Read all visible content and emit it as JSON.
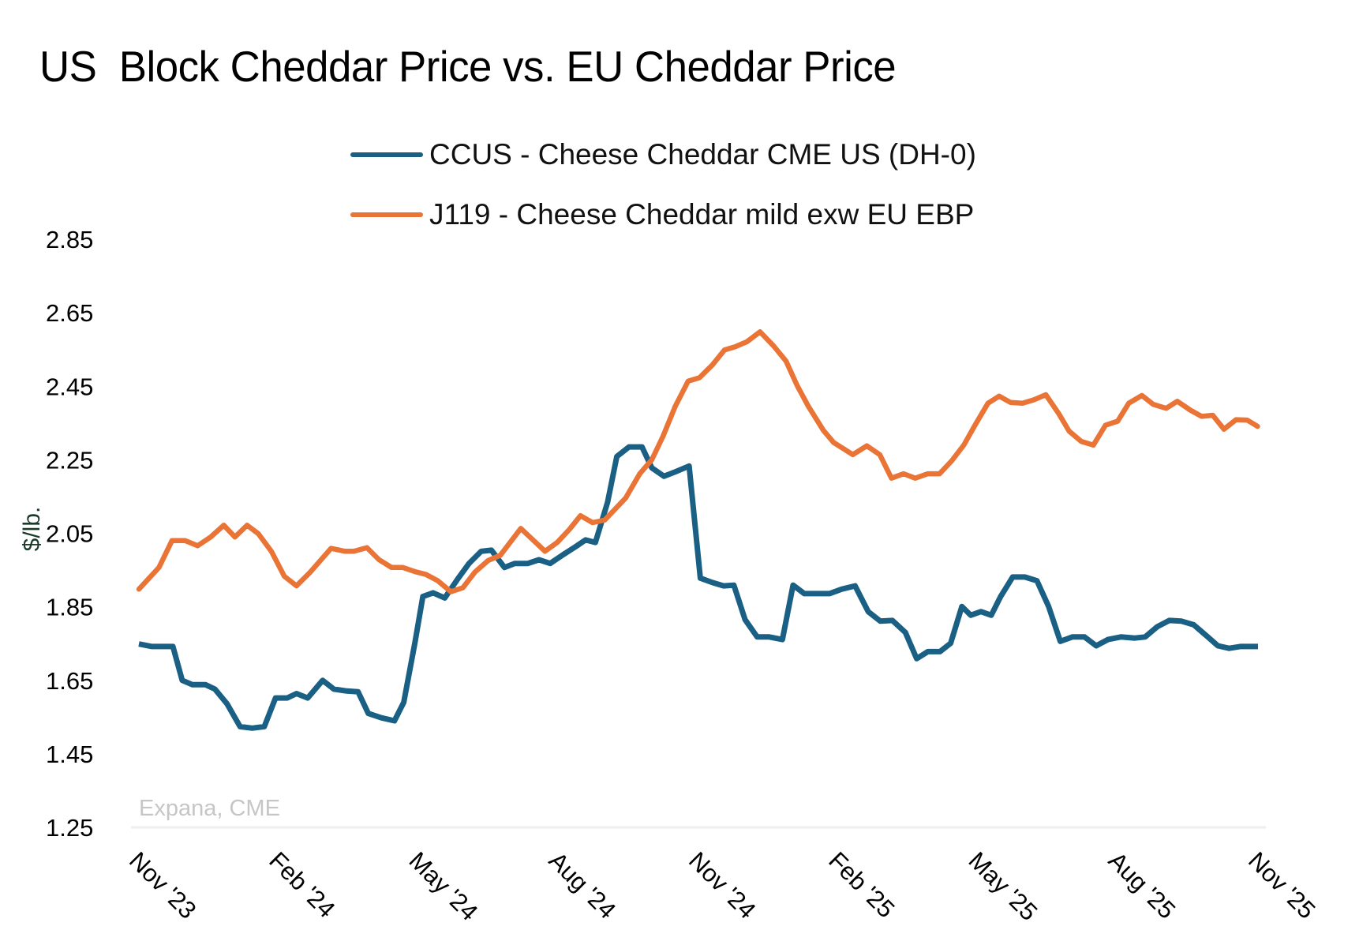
{
  "chart_data": {
    "type": "line",
    "title": "US  Block Cheddar Price vs. EU Cheddar Price",
    "ylabel": "$/lb.",
    "xlabel": "",
    "ylim": [
      1.25,
      2.85
    ],
    "yticks": [
      1.25,
      1.45,
      1.65,
      1.85,
      2.05,
      2.25,
      2.45,
      2.65,
      2.85
    ],
    "ytick_labels": [
      "1.25",
      "1.45",
      "1.65",
      "1.85",
      "2.05",
      "2.25",
      "2.45",
      "2.65",
      "2.85"
    ],
    "x_unit": "months since Nov '23",
    "xlim": [
      0,
      24
    ],
    "xticks": [
      0,
      3,
      6,
      9,
      12,
      15,
      18,
      21,
      24
    ],
    "xtick_labels": [
      "Nov '23",
      "Feb '24",
      "May '24",
      "Aug '24",
      "Nov '24",
      "Feb '25",
      "May '25",
      "Aug '25",
      "Nov '25"
    ],
    "grid": false,
    "legend_position": "top-center",
    "source": "Expana, CME",
    "series": [
      {
        "name": "CCUS - Cheese Cheddar CME US (DH-0)",
        "color": "#1a5f84",
        "points": [
          [
            0.0,
            1.749
          ],
          [
            0.28,
            1.742
          ],
          [
            0.56,
            1.742
          ],
          [
            0.73,
            1.742
          ],
          [
            0.93,
            1.65
          ],
          [
            1.15,
            1.638
          ],
          [
            1.43,
            1.638
          ],
          [
            1.63,
            1.626
          ],
          [
            1.89,
            1.586
          ],
          [
            2.17,
            1.524
          ],
          [
            2.43,
            1.52
          ],
          [
            2.69,
            1.524
          ],
          [
            2.93,
            1.602
          ],
          [
            3.18,
            1.602
          ],
          [
            3.38,
            1.614
          ],
          [
            3.62,
            1.602
          ],
          [
            3.94,
            1.65
          ],
          [
            4.18,
            1.626
          ],
          [
            4.46,
            1.621
          ],
          [
            4.7,
            1.619
          ],
          [
            4.92,
            1.56
          ],
          [
            5.2,
            1.548
          ],
          [
            5.48,
            1.54
          ],
          [
            5.68,
            1.59
          ],
          [
            5.92,
            1.753
          ],
          [
            6.09,
            1.878
          ],
          [
            6.31,
            1.888
          ],
          [
            6.56,
            1.874
          ],
          [
            6.84,
            1.926
          ],
          [
            7.08,
            1.968
          ],
          [
            7.34,
            2.001
          ],
          [
            7.56,
            2.004
          ],
          [
            7.84,
            1.957
          ],
          [
            8.06,
            1.968
          ],
          [
            8.34,
            1.968
          ],
          [
            8.58,
            1.978
          ],
          [
            8.82,
            1.968
          ],
          [
            9.1,
            1.992
          ],
          [
            9.36,
            2.013
          ],
          [
            9.58,
            2.032
          ],
          [
            9.79,
            2.025
          ],
          [
            10.05,
            2.134
          ],
          [
            10.25,
            2.259
          ],
          [
            10.51,
            2.285
          ],
          [
            10.79,
            2.285
          ],
          [
            10.999,
            2.228
          ],
          [
            11.26,
            2.205
          ],
          [
            11.5,
            2.217
          ],
          [
            11.8,
            2.233
          ],
          [
            12.04,
            1.928
          ],
          [
            12.3,
            1.916
          ],
          [
            12.54,
            1.907
          ],
          [
            12.76,
            1.909
          ],
          [
            13.0,
            1.815
          ],
          [
            13.26,
            1.768
          ],
          [
            13.52,
            1.768
          ],
          [
            13.8,
            1.761
          ],
          [
            14.03,
            1.909
          ],
          [
            14.27,
            1.886
          ],
          [
            14.55,
            1.886
          ],
          [
            14.81,
            1.886
          ],
          [
            15.07,
            1.898
          ],
          [
            15.36,
            1.907
          ],
          [
            15.64,
            1.837
          ],
          [
            15.9,
            1.811
          ],
          [
            16.16,
            1.813
          ],
          [
            16.44,
            1.78
          ],
          [
            16.68,
            1.709
          ],
          [
            16.92,
            1.728
          ],
          [
            17.18,
            1.728
          ],
          [
            17.41,
            1.751
          ],
          [
            17.65,
            1.851
          ],
          [
            17.84,
            1.827
          ],
          [
            18.06,
            1.837
          ],
          [
            18.28,
            1.827
          ],
          [
            18.48,
            1.878
          ],
          [
            18.74,
            1.931
          ],
          [
            19.0,
            1.931
          ],
          [
            19.26,
            1.921
          ],
          [
            19.51,
            1.851
          ],
          [
            19.76,
            1.756
          ],
          [
            20.02,
            1.768
          ],
          [
            20.28,
            1.768
          ],
          [
            20.53,
            1.744
          ],
          [
            20.78,
            1.761
          ],
          [
            21.06,
            1.768
          ],
          [
            21.36,
            1.765
          ],
          [
            21.58,
            1.768
          ],
          [
            21.84,
            1.796
          ],
          [
            22.1,
            1.813
          ],
          [
            22.36,
            1.811
          ],
          [
            22.62,
            1.801
          ],
          [
            22.88,
            1.773
          ],
          [
            23.14,
            1.744
          ],
          [
            23.38,
            1.737
          ],
          [
            23.62,
            1.742
          ],
          [
            23.86,
            1.742
          ],
          [
            24.0,
            1.742
          ]
        ]
      },
      {
        "name": "J119 - Cheese Cheddar mild exw EU EBP",
        "color": "#e97435",
        "points": [
          [
            0.0,
            1.898
          ],
          [
            0.43,
            1.957
          ],
          [
            0.71,
            2.03
          ],
          [
            0.99,
            2.03
          ],
          [
            1.26,
            2.016
          ],
          [
            1.54,
            2.04
          ],
          [
            1.82,
            2.072
          ],
          [
            2.06,
            2.04
          ],
          [
            2.32,
            2.072
          ],
          [
            2.56,
            2.049
          ],
          [
            2.84,
            2.001
          ],
          [
            3.12,
            1.933
          ],
          [
            3.38,
            1.907
          ],
          [
            3.68,
            1.945
          ],
          [
            4.12,
            2.009
          ],
          [
            4.42,
            2.001
          ],
          [
            4.61,
            2.001
          ],
          [
            4.89,
            2.011
          ],
          [
            5.15,
            1.978
          ],
          [
            5.42,
            1.957
          ],
          [
            5.66,
            1.957
          ],
          [
            5.94,
            1.945
          ],
          [
            6.16,
            1.938
          ],
          [
            6.41,
            1.921
          ],
          [
            6.69,
            1.891
          ],
          [
            6.95,
            1.902
          ],
          [
            7.21,
            1.945
          ],
          [
            7.49,
            1.976
          ],
          [
            7.75,
            1.99
          ],
          [
            8.19,
            2.063
          ],
          [
            8.71,
            2.001
          ],
          [
            8.97,
            2.025
          ],
          [
            9.23,
            2.06
          ],
          [
            9.47,
            2.098
          ],
          [
            9.73,
            2.079
          ],
          [
            9.99,
            2.086
          ],
          [
            10.44,
            2.146
          ],
          [
            10.74,
            2.212
          ],
          [
            11.0,
            2.25
          ],
          [
            11.24,
            2.314
          ],
          [
            11.5,
            2.395
          ],
          [
            11.78,
            2.464
          ],
          [
            12.02,
            2.473
          ],
          [
            12.3,
            2.508
          ],
          [
            12.56,
            2.549
          ],
          [
            12.78,
            2.557
          ],
          [
            13.04,
            2.571
          ],
          [
            13.32,
            2.598
          ],
          [
            13.61,
            2.56
          ],
          [
            13.88,
            2.518
          ],
          [
            14.12,
            2.451
          ],
          [
            14.36,
            2.395
          ],
          [
            14.68,
            2.33
          ],
          [
            14.9,
            2.297
          ],
          [
            15.31,
            2.264
          ],
          [
            15.61,
            2.288
          ],
          [
            15.89,
            2.264
          ],
          [
            16.14,
            2.2
          ],
          [
            16.4,
            2.212
          ],
          [
            16.65,
            2.2
          ],
          [
            16.92,
            2.212
          ],
          [
            17.17,
            2.212
          ],
          [
            17.43,
            2.247
          ],
          [
            17.69,
            2.29
          ],
          [
            17.93,
            2.344
          ],
          [
            18.21,
            2.404
          ],
          [
            18.45,
            2.423
          ],
          [
            18.69,
            2.406
          ],
          [
            18.95,
            2.404
          ],
          [
            19.19,
            2.413
          ],
          [
            19.45,
            2.427
          ],
          [
            19.73,
            2.375
          ],
          [
            19.95,
            2.328
          ],
          [
            20.21,
            2.3
          ],
          [
            20.47,
            2.29
          ],
          [
            20.73,
            2.344
          ],
          [
            20.99,
            2.355
          ],
          [
            21.23,
            2.404
          ],
          [
            21.51,
            2.425
          ],
          [
            21.75,
            2.401
          ],
          [
            22.03,
            2.39
          ],
          [
            22.27,
            2.409
          ],
          [
            22.55,
            2.385
          ],
          [
            22.79,
            2.368
          ],
          [
            23.03,
            2.371
          ],
          [
            23.27,
            2.333
          ],
          [
            23.53,
            2.359
          ],
          [
            23.77,
            2.358
          ],
          [
            23.99,
            2.341
          ]
        ]
      }
    ]
  }
}
